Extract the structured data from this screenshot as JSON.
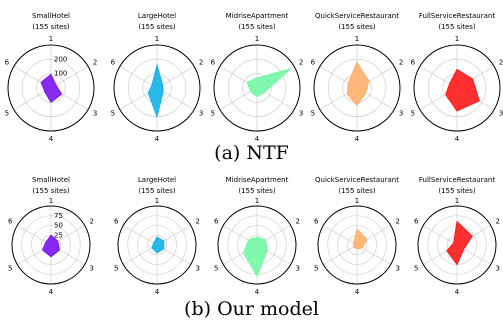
{
  "captions": {
    "top": "(a) NTF",
    "bottom": "(b) Our model"
  },
  "chart_data": [
    {
      "group": "(a) NTF",
      "type": "radar",
      "axes": [
        "1",
        "2",
        "3",
        "4",
        "5",
        "6"
      ],
      "rings": [
        100,
        200,
        300
      ],
      "rmax": 300,
      "ring_labels": [
        "100",
        "200"
      ],
      "grid": true,
      "panels": [
        {
          "title": "SmallHotel",
          "subtitle": "(155 sites)",
          "color": "#7b14f0",
          "values": [
            95,
            40,
            85,
            100,
            50,
            80
          ]
        },
        {
          "title": "LargeHotel",
          "subtitle": "(155 sites)",
          "color": "#12b3e8",
          "values": [
            160,
            45,
            50,
            200,
            70,
            40
          ]
        },
        {
          "title": "MidriseApartment",
          "subtitle": "(155 sites)",
          "color": "#72f7a5",
          "values": [
            70,
            270,
            60,
            60,
            50,
            80
          ]
        },
        {
          "title": "QuickServiceRestaurant",
          "subtitle": "(155 sites)",
          "color": "#ffb06b",
          "values": [
            180,
            95,
            70,
            120,
            80,
            70
          ]
        },
        {
          "title": "FullServiceRestaurant",
          "subtitle": "(155 sites)",
          "color": "#ff1a1a",
          "values": [
            130,
            125,
            180,
            160,
            90,
            60
          ]
        }
      ]
    },
    {
      "group": "(b) Our model",
      "type": "radar",
      "axes": [
        "1",
        "2",
        "3",
        "4",
        "5",
        "6"
      ],
      "rings": [
        25,
        50,
        75,
        100
      ],
      "rmax": 100,
      "ring_labels": [
        "25",
        "50",
        "75"
      ],
      "grid": true,
      "panels": [
        {
          "title": "SmallHotel",
          "subtitle": "(155 sites)",
          "color": "#7b14f0",
          "values": [
            25,
            20,
            25,
            30,
            25,
            15
          ]
        },
        {
          "title": "LargeHotel",
          "subtitle": "(155 sites)",
          "color": "#12b3e8",
          "values": [
            20,
            20,
            20,
            20,
            15,
            10
          ]
        },
        {
          "title": "MidriseApartment",
          "subtitle": "(155 sites)",
          "color": "#72f7a5",
          "values": [
            20,
            25,
            30,
            80,
            40,
            25
          ]
        },
        {
          "title": "QuickServiceRestaurant",
          "subtitle": "(155 sites)",
          "color": "#ffb06b",
          "values": [
            40,
            30,
            15,
            10,
            10,
            10
          ]
        },
        {
          "title": "FullServiceRestaurant",
          "subtitle": "(155 sites)",
          "color": "#ff1a1a",
          "values": [
            60,
            45,
            20,
            50,
            30,
            10
          ]
        }
      ]
    }
  ]
}
